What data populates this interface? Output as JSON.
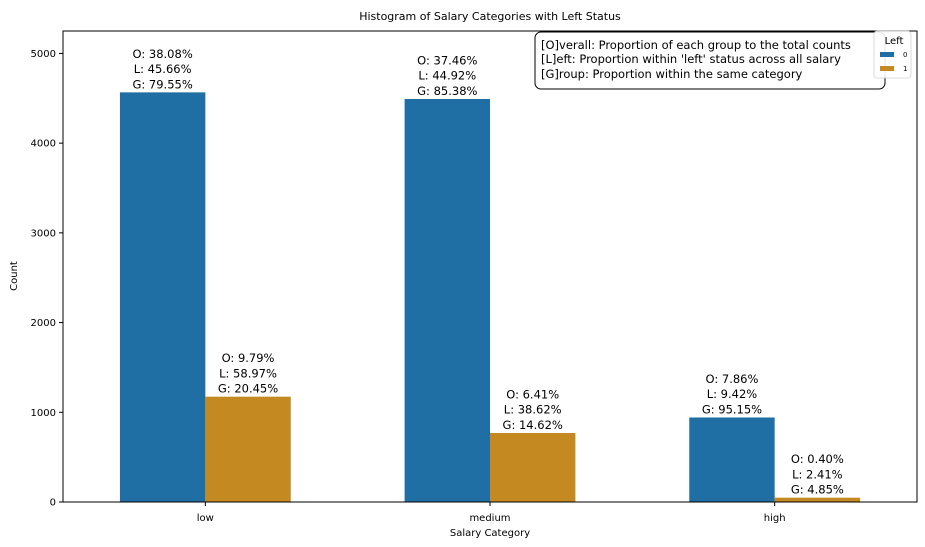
{
  "chart_data": {
    "type": "bar",
    "title": "Histogram of Salary Categories with Left Status",
    "xlabel": "Salary Category",
    "ylabel": "Count",
    "ylim": [
      0,
      5250
    ],
    "yticks": [
      0,
      1000,
      2000,
      3000,
      4000,
      5000
    ],
    "categories": [
      "low",
      "medium",
      "high"
    ],
    "series": [
      {
        "name": "0",
        "color": "#1f6fa4",
        "values": [
          4566,
          4492,
          942
        ],
        "labels": [
          [
            "O: 38.08%",
            "L: 45.66%",
            "G: 79.55%"
          ],
          [
            "O: 37.46%",
            "L: 44.92%",
            "G: 85.38%"
          ],
          [
            "O: 7.86%",
            "L: 9.42%",
            "G: 95.15%"
          ]
        ]
      },
      {
        "name": "1",
        "color": "#c48920",
        "values": [
          1174,
          769,
          48
        ],
        "labels": [
          [
            "O: 9.79%",
            "L: 58.97%",
            "G: 20.45%"
          ],
          [
            "O: 6.41%",
            "L: 38.62%",
            "G: 14.62%"
          ],
          [
            "O: 0.40%",
            "L: 2.41%",
            "G: 4.85%"
          ]
        ]
      }
    ],
    "legend": {
      "title": "Left",
      "placement": "top-right"
    },
    "annotation": [
      "[O]verall: Proportion of each group to the total counts",
      "[L]eft: Proportion within 'left' status across all salary",
      "[G]roup: Proportion within the same category"
    ],
    "grid": false
  }
}
